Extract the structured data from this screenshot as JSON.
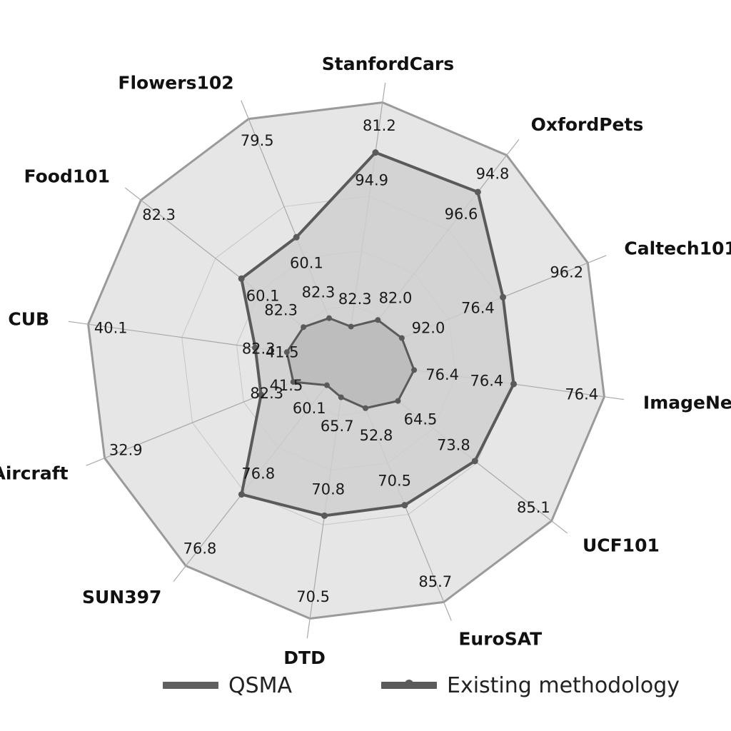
{
  "chart_data": {
    "type": "radar",
    "title": "",
    "categories": [
      "StanfordCars",
      "OxfordPets",
      "Caltech101",
      "ImageNet",
      "UCF101",
      "EuroSAT",
      "DTD",
      "SUN397",
      "FGVCAircraft",
      "CUB",
      "Food101",
      "Flowers102"
    ],
    "grid": true,
    "legend": "bottom",
    "series": [
      {
        "name": "QSMA",
        "color": "#5f5f5f",
        "values": [
          81.2,
          94.8,
          96.2,
          76.4,
          85.1,
          85.7,
          70.5,
          76.8,
          32.9,
          40.1,
          82.3,
          79.5
        ]
      },
      {
        "name": "Existing methodology",
        "color": "#5a5a5a",
        "values": [
          94.9,
          96.6,
          76.4,
          76.4,
          73.8,
          70.5,
          70.8,
          76.8,
          41.5,
          41.5,
          60.1,
          60.1
        ]
      }
    ],
    "inner_labels": [
      [
        "82.3",
        "82.0",
        "92.0",
        "76.4",
        "64.5",
        "52.8",
        "65.7",
        "60.1",
        "82.3",
        "82.3",
        "82.3",
        "82.3"
      ]
    ]
  },
  "colors": {
    "outer_fill": "#e6e6e6",
    "outer_stroke": "#9a9a9a",
    "inner_fill": "#cfcfcf",
    "center_fill": "#bdbdbd",
    "series_stroke": "#5a5a5a",
    "grid": "#c6c6c6"
  }
}
